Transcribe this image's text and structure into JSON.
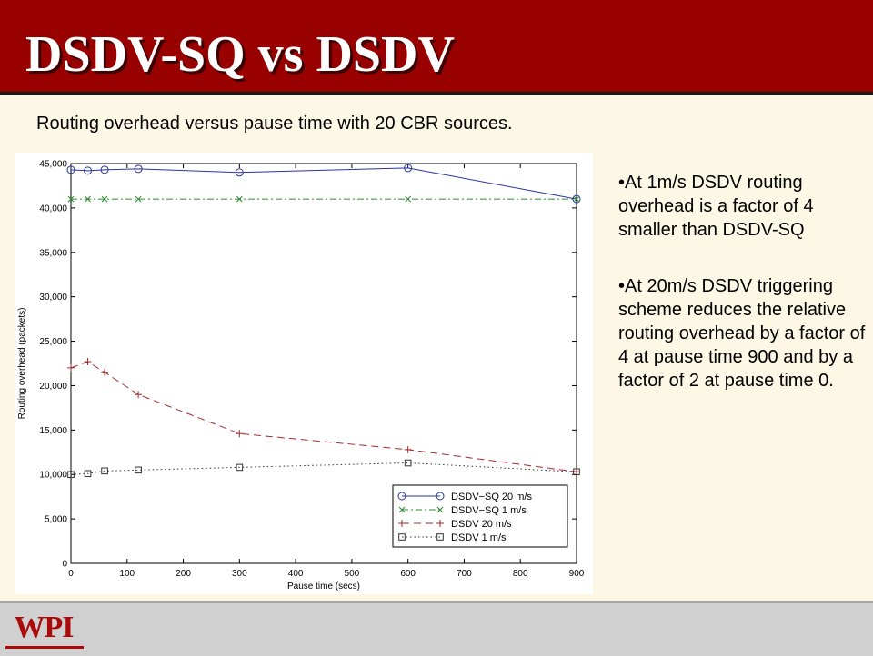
{
  "slide": {
    "title": "DSDV-SQ vs DSDV",
    "caption": "Routing overhead versus pause time with 20 CBR sources.",
    "bullets": [
      "•At 1m/s DSDV routing overhead is a factor of 4 smaller than DSDV-SQ",
      "•At 20m/s DSDV triggering scheme reduces the relative routing overhead by a factor of 4 at pause time 900 and by a factor of 2 at pause time 0."
    ],
    "logo_text": "WPI"
  },
  "colors": {
    "header": "#990000",
    "background": "#fdf8e6",
    "logo": "#aa0a0a"
  },
  "chart_data": {
    "type": "line",
    "xlabel": "Pause time (secs)",
    "ylabel": "Routing overhead (packets)",
    "xlim": [
      0,
      900
    ],
    "ylim": [
      0,
      45000
    ],
    "xticks": [
      0,
      100,
      200,
      300,
      400,
      500,
      600,
      700,
      800,
      900
    ],
    "xtick_labels": [
      "0",
      "100",
      "200",
      "300",
      "400",
      "500",
      "600",
      "700",
      "800",
      "900"
    ],
    "yticks": [
      0,
      5000,
      10000,
      15000,
      20000,
      25000,
      30000,
      35000,
      40000,
      45000
    ],
    "ytick_labels": [
      "0",
      "5,000",
      "10,000",
      "15,000",
      "20,000",
      "25,000",
      "30,000",
      "35,000",
      "40,000",
      "45,000"
    ],
    "grid": false,
    "legend_position": "bottom-right",
    "series": [
      {
        "name": "DSDV−SQ 20 m/s",
        "marker": "circle",
        "dash": "solid",
        "color": "#2a35a0",
        "x": [
          0,
          30,
          60,
          120,
          300,
          600,
          900
        ],
        "y": [
          44300,
          44200,
          44300,
          44400,
          44000,
          44500,
          41000
        ]
      },
      {
        "name": "DSDV−SQ 1 m/s",
        "marker": "x",
        "dash": "dashdot",
        "color": "#2e8b2e",
        "x": [
          0,
          30,
          60,
          120,
          300,
          600,
          900
        ],
        "y": [
          41000,
          41000,
          41000,
          41000,
          41000,
          41000,
          41000
        ]
      },
      {
        "name": "DSDV 20 m/s",
        "marker": "plus",
        "dash": "dashed",
        "color": "#a52a2a",
        "x": [
          0,
          30,
          60,
          120,
          300,
          600,
          900
        ],
        "y": [
          22000,
          22700,
          21500,
          19000,
          14600,
          12800,
          10300
        ]
      },
      {
        "name": "DSDV 1 m/s",
        "marker": "square",
        "dash": "dotted",
        "color": "#333333",
        "x": [
          0,
          30,
          60,
          120,
          300,
          600,
          900
        ],
        "y": [
          10000,
          10100,
          10400,
          10500,
          10800,
          11300,
          10300
        ]
      }
    ]
  }
}
